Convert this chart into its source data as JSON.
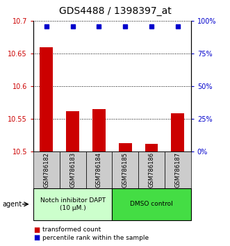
{
  "title": "GDS4488 / 1398397_at",
  "samples": [
    "GSM786182",
    "GSM786183",
    "GSM786184",
    "GSM786185",
    "GSM786186",
    "GSM786187"
  ],
  "bar_values": [
    10.66,
    10.562,
    10.565,
    10.513,
    10.511,
    10.558
  ],
  "percentile_values": [
    96,
    96,
    96,
    96,
    96,
    96
  ],
  "ylim_left": [
    10.5,
    10.7
  ],
  "ylim_right": [
    0,
    100
  ],
  "yticks_left": [
    10.5,
    10.55,
    10.6,
    10.65,
    10.7
  ],
  "yticks_right": [
    0,
    25,
    50,
    75,
    100
  ],
  "bar_color": "#cc0000",
  "percentile_color": "#0000cc",
  "group1_label_line1": "Notch inhibitor DAPT",
  "group1_label_line2": "(10 μM.)",
  "group2_label": "DMSO control",
  "group1_color": "#ccffcc",
  "group2_color": "#44dd44",
  "agent_label": "agent",
  "legend_bar_label": "transformed count",
  "legend_pct_label": "percentile rank within the sample",
  "title_fontsize": 10,
  "tick_fontsize": 7,
  "label_fontsize": 7,
  "sample_box_color": "#cccccc"
}
